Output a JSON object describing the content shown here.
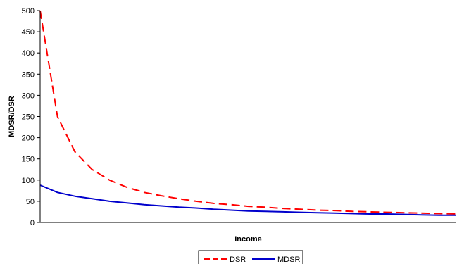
{
  "chart_data": {
    "type": "line",
    "title": "",
    "xlabel": "Income",
    "ylabel": "MDSR/DSR",
    "ylim": [
      0,
      500
    ],
    "y_ticks": [
      0,
      50,
      100,
      150,
      200,
      250,
      300,
      350,
      400,
      450,
      500
    ],
    "x_tick_labels": "none",
    "grid": false,
    "legend_placement": "bottom",
    "x": [
      1,
      2,
      3,
      4,
      5,
      6,
      7,
      8,
      9,
      10,
      11,
      12,
      13,
      14,
      15,
      16,
      17,
      18,
      19,
      20,
      21,
      22,
      23,
      24,
      25
    ],
    "series": [
      {
        "name": "DSR",
        "color": "#ff0000",
        "line_style": "dashed",
        "values": [
          500,
          250,
          167,
          125,
          100,
          83,
          71,
          63,
          56,
          50,
          45,
          42,
          38,
          36,
          33,
          31,
          29,
          28,
          26,
          25,
          24,
          23,
          22,
          21,
          20
        ]
      },
      {
        "name": "MDSR",
        "color": "#0000cc",
        "line_style": "solid",
        "values": [
          88,
          71,
          62,
          56,
          50,
          46,
          42,
          39,
          36,
          34,
          31,
          29,
          27,
          26,
          25,
          24,
          23,
          22,
          21,
          20,
          20,
          19,
          18,
          17,
          17
        ]
      }
    ]
  }
}
